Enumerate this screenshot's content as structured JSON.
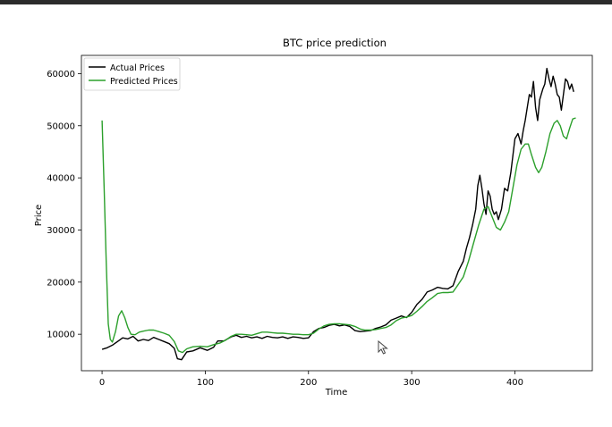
{
  "chart_data": {
    "type": "line",
    "title": "BTC price prediction",
    "xlabel": "Time",
    "ylabel": "Price",
    "xlim": [
      -20,
      475
    ],
    "ylim": [
      3000,
      63500
    ],
    "xticks": [
      0,
      100,
      200,
      300,
      400
    ],
    "yticks": [
      10000,
      20000,
      30000,
      40000,
      50000,
      60000
    ],
    "legend": "top-left",
    "grid": false,
    "series": [
      {
        "name": "Actual Prices",
        "color": "#000000",
        "points": [
          [
            0,
            7100
          ],
          [
            5,
            7400
          ],
          [
            10,
            7900
          ],
          [
            15,
            8600
          ],
          [
            20,
            9300
          ],
          [
            25,
            9100
          ],
          [
            30,
            9600
          ],
          [
            35,
            8700
          ],
          [
            40,
            9000
          ],
          [
            45,
            8800
          ],
          [
            50,
            9400
          ],
          [
            55,
            9000
          ],
          [
            60,
            8600
          ],
          [
            65,
            8200
          ],
          [
            70,
            7300
          ],
          [
            73,
            5300
          ],
          [
            77,
            5100
          ],
          [
            82,
            6600
          ],
          [
            88,
            6800
          ],
          [
            95,
            7400
          ],
          [
            102,
            6900
          ],
          [
            108,
            7500
          ],
          [
            112,
            8700
          ],
          [
            118,
            8700
          ],
          [
            125,
            9500
          ],
          [
            130,
            9800
          ],
          [
            135,
            9400
          ],
          [
            140,
            9600
          ],
          [
            145,
            9300
          ],
          [
            150,
            9500
          ],
          [
            155,
            9200
          ],
          [
            160,
            9600
          ],
          [
            165,
            9400
          ],
          [
            170,
            9300
          ],
          [
            175,
            9500
          ],
          [
            180,
            9200
          ],
          [
            185,
            9500
          ],
          [
            190,
            9400
          ],
          [
            195,
            9200
          ],
          [
            200,
            9300
          ],
          [
            205,
            10500
          ],
          [
            210,
            11100
          ],
          [
            215,
            11300
          ],
          [
            220,
            11700
          ],
          [
            225,
            11900
          ],
          [
            230,
            11600
          ],
          [
            235,
            11800
          ],
          [
            240,
            11500
          ],
          [
            245,
            10700
          ],
          [
            250,
            10500
          ],
          [
            255,
            10600
          ],
          [
            260,
            10700
          ],
          [
            265,
            11100
          ],
          [
            270,
            11400
          ],
          [
            275,
            11800
          ],
          [
            280,
            12700
          ],
          [
            285,
            13100
          ],
          [
            290,
            13500
          ],
          [
            295,
            13200
          ],
          [
            300,
            14200
          ],
          [
            305,
            15700
          ],
          [
            310,
            16700
          ],
          [
            315,
            18100
          ],
          [
            320,
            18500
          ],
          [
            325,
            19000
          ],
          [
            330,
            18800
          ],
          [
            335,
            18700
          ],
          [
            340,
            19300
          ],
          [
            345,
            22000
          ],
          [
            350,
            24000
          ],
          [
            353,
            26500
          ],
          [
            356,
            28500
          ],
          [
            359,
            31000
          ],
          [
            362,
            34000
          ],
          [
            364,
            38500
          ],
          [
            366,
            40500
          ],
          [
            368,
            38000
          ],
          [
            370,
            35000
          ],
          [
            372,
            33000
          ],
          [
            374,
            37500
          ],
          [
            376,
            36500
          ],
          [
            378,
            34000
          ],
          [
            380,
            33000
          ],
          [
            382,
            33500
          ],
          [
            384,
            32000
          ],
          [
            387,
            34000
          ],
          [
            390,
            38000
          ],
          [
            393,
            37500
          ],
          [
            396,
            41000
          ],
          [
            400,
            47500
          ],
          [
            403,
            48500
          ],
          [
            406,
            46500
          ],
          [
            408,
            49000
          ],
          [
            410,
            51000
          ],
          [
            412,
            53500
          ],
          [
            414,
            56000
          ],
          [
            416,
            55500
          ],
          [
            418,
            58500
          ],
          [
            420,
            53500
          ],
          [
            422,
            51000
          ],
          [
            424,
            55000
          ],
          [
            427,
            57000
          ],
          [
            429,
            58000
          ],
          [
            431,
            61000
          ],
          [
            433,
            59000
          ],
          [
            435,
            57500
          ],
          [
            437,
            59500
          ],
          [
            439,
            58000
          ],
          [
            441,
            56000
          ],
          [
            443,
            55500
          ],
          [
            445,
            53000
          ],
          [
            447,
            56000
          ],
          [
            449,
            59000
          ],
          [
            451,
            58500
          ],
          [
            453,
            57000
          ],
          [
            455,
            58000
          ],
          [
            457,
            56500
          ]
        ]
      },
      {
        "name": "Predicted Prices",
        "color": "#2ca02c",
        "points": [
          [
            0,
            51000
          ],
          [
            2,
            38000
          ],
          [
            4,
            24000
          ],
          [
            6,
            12000
          ],
          [
            8,
            9000
          ],
          [
            10,
            8500
          ],
          [
            13,
            10500
          ],
          [
            16,
            13500
          ],
          [
            19,
            14500
          ],
          [
            22,
            13200
          ],
          [
            25,
            11300
          ],
          [
            28,
            10000
          ],
          [
            32,
            9900
          ],
          [
            36,
            10400
          ],
          [
            40,
            10600
          ],
          [
            45,
            10800
          ],
          [
            50,
            10800
          ],
          [
            55,
            10500
          ],
          [
            60,
            10200
          ],
          [
            65,
            9800
          ],
          [
            70,
            8600
          ],
          [
            74,
            6800
          ],
          [
            78,
            6500
          ],
          [
            82,
            7200
          ],
          [
            88,
            7600
          ],
          [
            95,
            7700
          ],
          [
            102,
            7600
          ],
          [
            108,
            8000
          ],
          [
            114,
            8300
          ],
          [
            120,
            8900
          ],
          [
            125,
            9600
          ],
          [
            130,
            10000
          ],
          [
            135,
            10000
          ],
          [
            140,
            9900
          ],
          [
            145,
            9800
          ],
          [
            150,
            10100
          ],
          [
            155,
            10400
          ],
          [
            160,
            10400
          ],
          [
            165,
            10300
          ],
          [
            170,
            10200
          ],
          [
            175,
            10200
          ],
          [
            180,
            10100
          ],
          [
            185,
            10000
          ],
          [
            190,
            10000
          ],
          [
            195,
            9900
          ],
          [
            200,
            9900
          ],
          [
            205,
            10200
          ],
          [
            210,
            11000
          ],
          [
            215,
            11600
          ],
          [
            220,
            11900
          ],
          [
            225,
            12000
          ],
          [
            230,
            12000
          ],
          [
            235,
            11900
          ],
          [
            240,
            11800
          ],
          [
            245,
            11500
          ],
          [
            250,
            11000
          ],
          [
            255,
            10800
          ],
          [
            260,
            10800
          ],
          [
            265,
            10900
          ],
          [
            270,
            11100
          ],
          [
            275,
            11300
          ],
          [
            280,
            11800
          ],
          [
            285,
            12600
          ],
          [
            290,
            13100
          ],
          [
            295,
            13300
          ],
          [
            300,
            13600
          ],
          [
            305,
            14400
          ],
          [
            310,
            15300
          ],
          [
            315,
            16300
          ],
          [
            320,
            17000
          ],
          [
            325,
            17800
          ],
          [
            330,
            18000
          ],
          [
            335,
            18000
          ],
          [
            340,
            18100
          ],
          [
            345,
            19500
          ],
          [
            350,
            21000
          ],
          [
            355,
            24000
          ],
          [
            360,
            27500
          ],
          [
            365,
            31000
          ],
          [
            370,
            34000
          ],
          [
            374,
            34500
          ],
          [
            378,
            32500
          ],
          [
            382,
            30500
          ],
          [
            386,
            30000
          ],
          [
            390,
            31500
          ],
          [
            394,
            33500
          ],
          [
            398,
            38000
          ],
          [
            402,
            42500
          ],
          [
            406,
            45500
          ],
          [
            410,
            46500
          ],
          [
            413,
            46500
          ],
          [
            416,
            44500
          ],
          [
            420,
            42000
          ],
          [
            423,
            41000
          ],
          [
            426,
            42000
          ],
          [
            430,
            45000
          ],
          [
            434,
            48500
          ],
          [
            438,
            50500
          ],
          [
            441,
            51000
          ],
          [
            444,
            50000
          ],
          [
            447,
            48000
          ],
          [
            450,
            47500
          ],
          [
            453,
            49500
          ],
          [
            456,
            51300
          ],
          [
            459,
            51500
          ]
        ]
      }
    ]
  }
}
